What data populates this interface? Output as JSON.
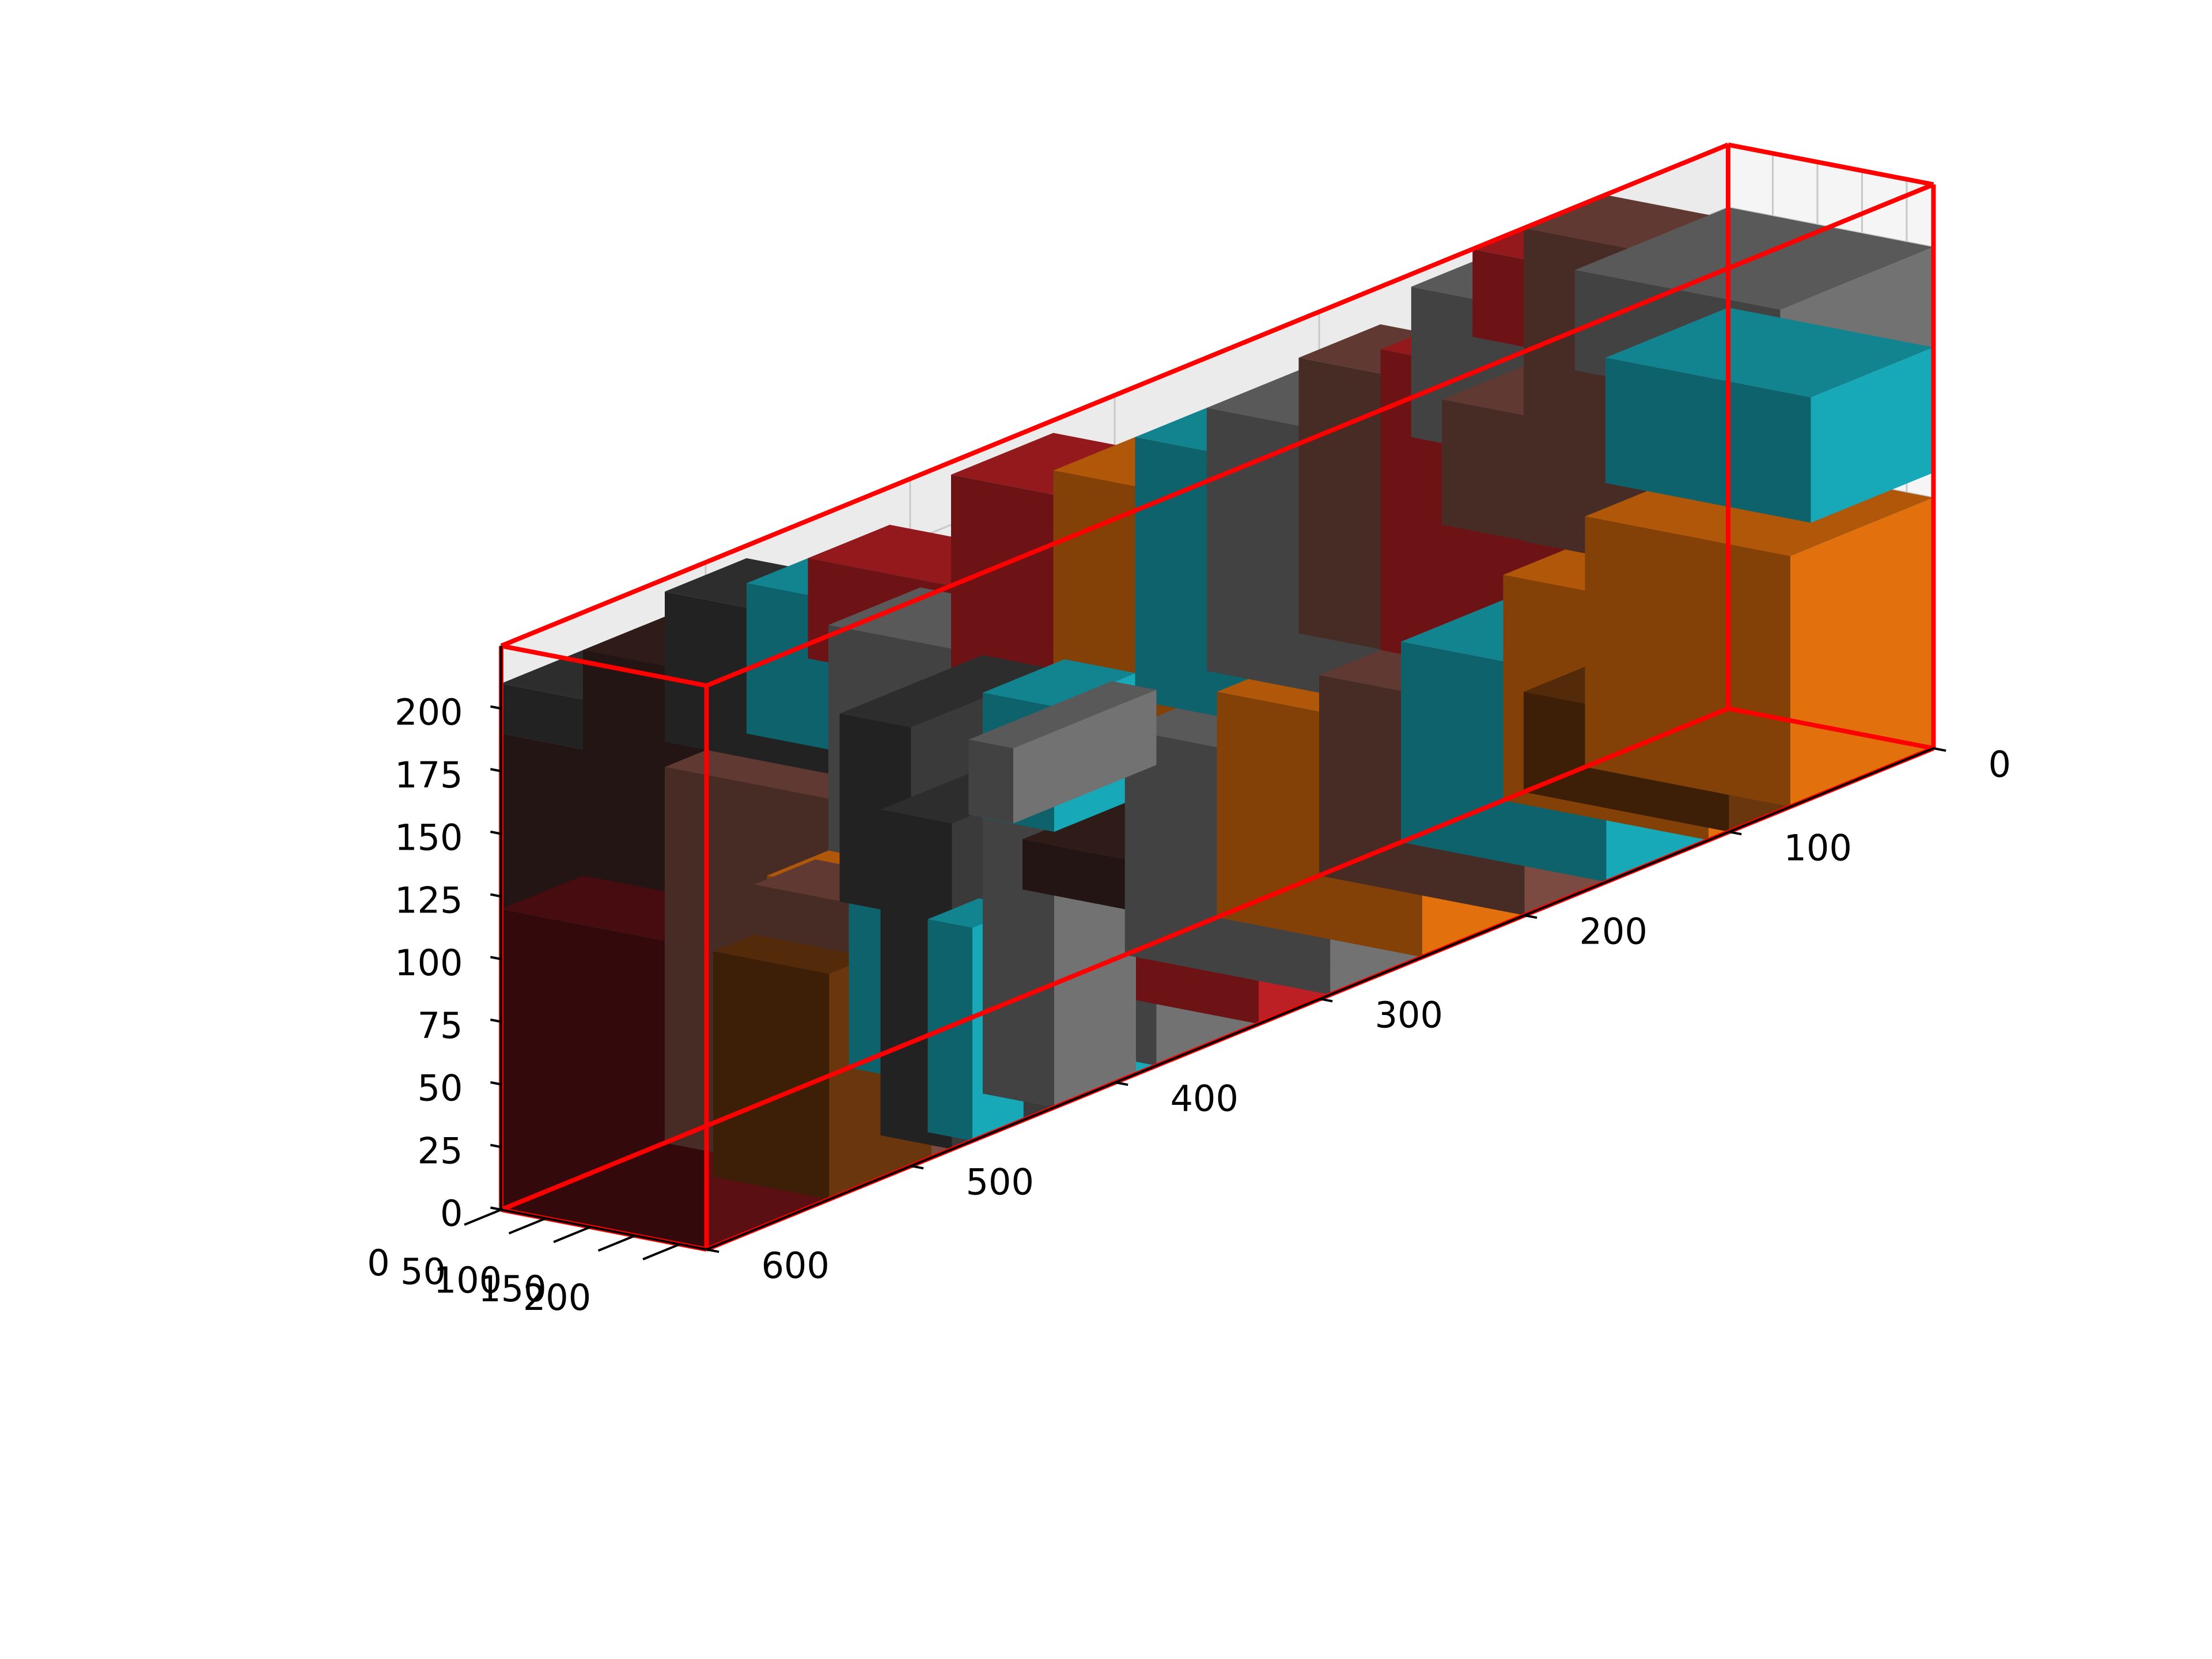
{
  "chart_data": {
    "type": "3d-box-packing",
    "title": "",
    "xlabel": "",
    "ylabel": "",
    "zlabel": "",
    "x_axis": {
      "range": [
        0,
        230
      ],
      "ticks": [
        0,
        50,
        100,
        150,
        200
      ],
      "tick_labels": [
        "0",
        "50",
        "100",
        "150",
        "200"
      ]
    },
    "y_axis": {
      "range": [
        0,
        600
      ],
      "ticks": [
        0,
        100,
        200,
        300,
        400,
        500,
        600
      ],
      "tick_labels": [
        "0",
        "100",
        "200",
        "300",
        "400",
        "500",
        "600"
      ]
    },
    "z_axis": {
      "range": [
        0,
        225
      ],
      "ticks": [
        0,
        25,
        50,
        75,
        100,
        125,
        150,
        175,
        200
      ],
      "tick_labels": [
        "0",
        "25",
        "50",
        "75",
        "100",
        "125",
        "150",
        "175",
        "200"
      ]
    },
    "grid": true,
    "container": {
      "x": [
        0,
        230
      ],
      "y": [
        0,
        600
      ],
      "z": [
        0,
        225
      ],
      "edge_color": "#ff0000"
    },
    "palette": {
      "cyan": "#17a9b8",
      "orange": "#e2700c",
      "red": "#bd2024",
      "gray": "#727272",
      "brown": "#7b4a40",
      "dark_gray": "#3a3a3a",
      "dark_brown": "#3c2420",
      "maroon": "#5a1013",
      "amber": "#6a360d"
    },
    "boxes": [
      {
        "x": [
          0,
          230
        ],
        "y": [
          0,
          60
        ],
        "z": [
          110,
          160
        ],
        "color": "cyan"
      },
      {
        "x": [
          0,
          230
        ],
        "y": [
          0,
          70
        ],
        "z": [
          0,
          100
        ],
        "color": "orange"
      },
      {
        "x": [
          0,
          230
        ],
        "y": [
          0,
          75
        ],
        "z": [
          160,
          200
        ],
        "color": "gray"
      },
      {
        "x": [
          0,
          230
        ],
        "y": [
          60,
          100
        ],
        "z": [
          100,
          225
        ],
        "color": "brown"
      },
      {
        "x": [
          0,
          230
        ],
        "y": [
          75,
          110
        ],
        "z": [
          0,
          90
        ],
        "color": "orange"
      },
      {
        "x": [
          0,
          230
        ],
        "y": [
          75,
          125
        ],
        "z": [
          190,
          225
        ],
        "color": "red"
      },
      {
        "x": [
          0,
          230
        ],
        "y": [
          100,
          140
        ],
        "z": [
          120,
          170
        ],
        "color": "brown"
      },
      {
        "x": [
          0,
          230
        ],
        "y": [
          110,
          160
        ],
        "z": [
          0,
          80
        ],
        "color": "cyan"
      },
      {
        "x": [
          0,
          230
        ],
        "y": [
          125,
          155
        ],
        "z": [
          160,
          220
        ],
        "color": "gray"
      },
      {
        "x": [
          0,
          230
        ],
        "y": [
          140,
          170
        ],
        "z": [
          80,
          200
        ],
        "color": "red"
      },
      {
        "x": [
          0,
          230
        ],
        "y": [
          160,
          200
        ],
        "z": [
          0,
          80
        ],
        "color": "brown"
      },
      {
        "x": [
          0,
          230
        ],
        "y": [
          170,
          210
        ],
        "z": [
          100,
          210
        ],
        "color": "brown"
      },
      {
        "x": [
          0,
          230
        ],
        "y": [
          200,
          250
        ],
        "z": [
          0,
          90
        ],
        "color": "orange"
      },
      {
        "x": [
          0,
          230
        ],
        "y": [
          210,
          255
        ],
        "z": [
          100,
          205
        ],
        "color": "gray"
      },
      {
        "x": [
          0,
          230
        ],
        "y": [
          250,
          295
        ],
        "z": [
          0,
          90
        ],
        "color": "gray"
      },
      {
        "x": [
          0,
          230
        ],
        "y": [
          255,
          290
        ],
        "z": [
          100,
          205
        ],
        "color": "cyan"
      },
      {
        "x": [
          0,
          230
        ],
        "y": [
          290,
          330
        ],
        "z": [
          100,
          205
        ],
        "color": "orange"
      },
      {
        "x": [
          0,
          230
        ],
        "y": [
          295,
          330
        ],
        "z": [
          0,
          85
        ],
        "color": "red"
      },
      {
        "x": [
          0,
          230
        ],
        "y": [
          330,
          380
        ],
        "z": [
          0,
          80
        ],
        "color": "gray"
      },
      {
        "x": [
          0,
          230
        ],
        "y": [
          330,
          380
        ],
        "z": [
          90,
          220
        ],
        "color": "red"
      },
      {
        "x": [
          0,
          230
        ],
        "y": [
          380,
          430
        ],
        "z": [
          0,
          100
        ],
        "color": "cyan"
      },
      {
        "x": [
          0,
          230
        ],
        "y": [
          430,
          470
        ],
        "z": [
          20,
          90
        ],
        "color": "orange"
      },
      {
        "x": [
          0,
          230
        ],
        "y": [
          470,
          520
        ],
        "z": [
          0,
          150
        ],
        "color": "brown"
      },
      {
        "x": [
          0,
          230
        ],
        "y": [
          520,
          560
        ],
        "z": [
          120,
          210
        ],
        "color": "dark_brown"
      },
      {
        "x": [
          0,
          230
        ],
        "y": [
          540,
          600
        ],
        "z": [
          0,
          120
        ],
        "color": "maroon"
      },
      {
        "x": [
          0,
          230
        ],
        "y": [
          560,
          600
        ],
        "z": [
          120,
          190
        ],
        "color": "dark_brown"
      },
      {
        "x": [
          0,
          230
        ],
        "y": [
          530,
          600
        ],
        "z": [
          190,
          210
        ],
        "color": "dark_gray"
      },
      {
        "x": [
          0,
          230
        ],
        "y": [
          480,
          520
        ],
        "z": [
          160,
          220
        ],
        "color": "dark_gray"
      },
      {
        "x": [
          0,
          230
        ],
        "y": [
          440,
          480
        ],
        "z": [
          150,
          210
        ],
        "color": "cyan"
      },
      {
        "x": [
          0,
          230
        ],
        "y": [
          395,
          440
        ],
        "z": [
          100,
          180
        ],
        "color": "gray"
      },
      {
        "x": [
          0,
          230
        ],
        "y": [
          400,
          440
        ],
        "z": [
          90,
          150
        ],
        "color": "gray"
      },
      {
        "x": [
          0,
          230
        ],
        "y": [
          410,
          450
        ],
        "z": [
          170,
          210
        ],
        "color": "red"
      },
      {
        "x": [
          0,
          230
        ],
        "y": [
          60,
          100
        ],
        "z": [
          0,
          40
        ],
        "color": "amber"
      },
      {
        "x": [
          150,
          230
        ],
        "y": [
          430,
          480
        ],
        "z": [
          0,
          130
        ],
        "color": "dark_gray"
      },
      {
        "x": [
          150,
          230
        ],
        "y": [
          390,
          430
        ],
        "z": [
          0,
          110
        ],
        "color": "gray"
      },
      {
        "x": [
          150,
          230
        ],
        "y": [
          430,
          500
        ],
        "z": [
          100,
          175
        ],
        "color": "dark_gray"
      },
      {
        "x": [
          150,
          230
        ],
        "y": [
          390,
          430
        ],
        "z": [
          110,
          160
        ],
        "color": "cyan"
      },
      {
        "x": [
          180,
          230
        ],
        "y": [
          380,
          450
        ],
        "z": [
          120,
          150
        ],
        "color": "gray"
      },
      {
        "x": [
          180,
          230
        ],
        "y": [
          445,
          470
        ],
        "z": [
          0,
          85
        ],
        "color": "cyan"
      },
      {
        "x": [
          100,
          230
        ],
        "y": [
          490,
          540
        ],
        "z": [
          0,
          90
        ],
        "color": "amber"
      },
      {
        "x": [
          100,
          230
        ],
        "y": [
          490,
          520
        ],
        "z": [
          90,
          110
        ],
        "color": "brown"
      },
      {
        "x": [
          80,
          230
        ],
        "y": [
          320,
          380
        ],
        "z": [
          60,
          80
        ],
        "color": "dark_brown"
      }
    ]
  }
}
